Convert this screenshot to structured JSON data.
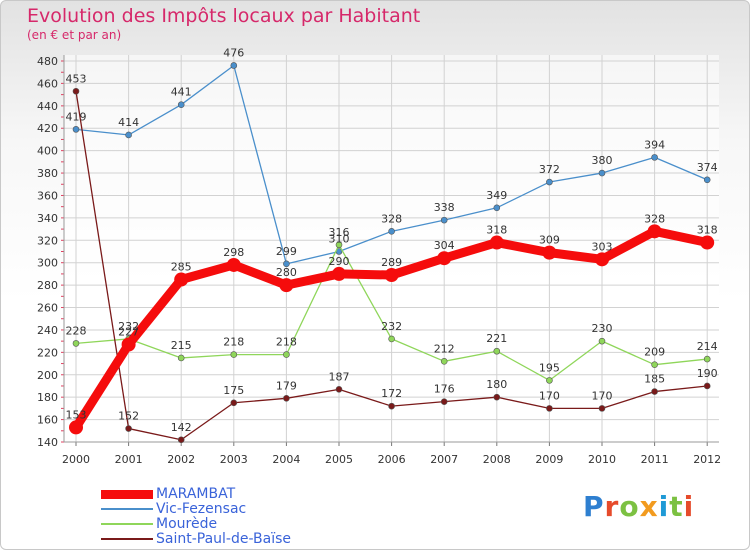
{
  "title": "Evolution des Impôts locaux par Habitant",
  "subtitle": "(en € et par an)",
  "logo": {
    "text": "Proxiti",
    "colors": [
      "#2e7fd0",
      "#e64b2b",
      "#7cc142",
      "#f29b1f",
      "#1f9ad6",
      "#7cc142",
      "#e64b2b"
    ]
  },
  "chart_data": {
    "type": "line",
    "title": "Evolution des Impôts locaux par Habitant",
    "subtitle": "(en € et par an)",
    "xlabel": "",
    "ylabel": "",
    "x": [
      "2000",
      "2001",
      "2002",
      "2003",
      "2004",
      "2005",
      "2006",
      "2007",
      "2008",
      "2009",
      "2010",
      "2011",
      "2012"
    ],
    "ylim": [
      140,
      480
    ],
    "yticks": [
      140,
      160,
      180,
      200,
      220,
      240,
      260,
      280,
      300,
      320,
      340,
      360,
      380,
      400,
      420,
      440,
      460,
      480
    ],
    "grid": true,
    "legend_position": "bottom-left",
    "series": [
      {
        "name": "MARAMBAT",
        "color": "#f50c0c",
        "emphasis": true,
        "values": [
          153,
          227,
          285,
          298,
          280,
          290,
          289,
          304,
          318,
          309,
          303,
          328,
          318
        ],
        "labels": [
          "153",
          "227",
          "285",
          "298",
          "280",
          "290",
          "289",
          "304",
          "318",
          "309",
          "303",
          "328",
          "318"
        ]
      },
      {
        "name": "Vic-Fezensac",
        "color": "#4a8fcb",
        "emphasis": false,
        "values": [
          419,
          414,
          441,
          476,
          299,
          310,
          328,
          338,
          349,
          372,
          380,
          394,
          374
        ],
        "labels": [
          "419",
          "414",
          "441",
          "476",
          "299",
          "310",
          "328",
          "338",
          "349",
          "372",
          "380",
          "394",
          "374"
        ]
      },
      {
        "name": "Mourède",
        "color": "#8fd65a",
        "emphasis": false,
        "values": [
          228,
          232,
          215,
          218,
          218,
          316,
          232,
          212,
          221,
          195,
          230,
          209,
          214
        ],
        "labels": [
          "228",
          "232",
          "215",
          "218",
          "218",
          "316",
          "232",
          "212",
          "221",
          "195",
          "230",
          "209",
          "214"
        ]
      },
      {
        "name": "Saint-Paul-de-Baïse",
        "color": "#7a1a1a",
        "emphasis": false,
        "values": [
          453,
          152,
          142,
          175,
          179,
          187,
          172,
          176,
          180,
          170,
          170,
          185,
          190
        ],
        "labels": [
          "453",
          "152",
          "142",
          "175",
          "179",
          "187",
          "172",
          "176",
          "180",
          "170",
          "170",
          "185",
          "190"
        ]
      }
    ]
  }
}
